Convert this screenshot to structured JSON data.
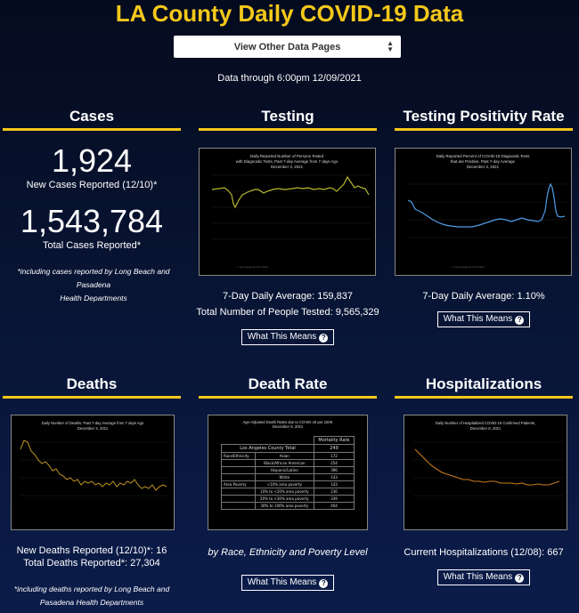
{
  "header": {
    "title": "LA County Daily COVID-19 Data",
    "select_label": "View Other Data Pages",
    "data_through": "Data through 6:00pm 12/09/2021"
  },
  "cases": {
    "title": "Cases",
    "new_value": "1,924",
    "new_label": "New Cases Reported (12/10)*",
    "total_value": "1,543,784",
    "total_label": "Total Cases Reported*",
    "footnote_line1": "*including cases reported by Long Beach and Pasadena",
    "footnote_line2": "Health Departments"
  },
  "testing": {
    "title": "Testing",
    "chart_title1": "Daily Reported Number of Persons Tested",
    "chart_title2": "with Diagnostic Tests, Past 7-day Average from 7 days Ago",
    "chart_title3": "December 3, 2021",
    "avg": "7-Day Daily Average: 159,837",
    "total": "Total Number of People Tested: 9,565,329",
    "button": "What This Means"
  },
  "positivity": {
    "title": "Testing Positivity Rate",
    "chart_title1": "Daily Reported Percent of COVID-19 Diagnostic Tests",
    "chart_title2": "that are Positive, Past 7-day Average",
    "chart_title3": "December 3, 2021",
    "avg": "7-Day Daily Average: 1.10%",
    "button": "What This Means"
  },
  "deaths": {
    "title": "Deaths",
    "chart_title1": "Daily Number of Deaths, Past 7-day Average from 7 days Ago",
    "chart_title2": "December 3, 2021",
    "new": "New Deaths Reported (12/10)*: 16",
    "total": "Total Deaths Reported*: 27,304",
    "footnote_line1": "*including deaths reported by Long Beach and",
    "footnote_line2": "Pasadena Health Departments"
  },
  "death_rate": {
    "title": "Death Rate",
    "chart_title1": "Age-Adjusted Death Rates due to COVID-19 per 100K",
    "chart_title2": "December 9, 2021",
    "col_header": "Mortality Rate",
    "total_label": "Los Angeles County Total",
    "total_value": "249",
    "group1": "Race/Ethnicity",
    "group2": "Area Poverty",
    "rows": [
      {
        "label": "Asian",
        "value": "172"
      },
      {
        "label": "Black/African American",
        "value": "254"
      },
      {
        "label": "Hispanic/Latino",
        "value": "396"
      },
      {
        "label": "White",
        "value": "143"
      },
      {
        "label": "<10% area poverty",
        "value": "143"
      },
      {
        "label": "10% to <20% area poverty",
        "value": "236"
      },
      {
        "label": "20% to <30% area poverty",
        "value": "339"
      },
      {
        "label": "30% to 100% area poverty",
        "value": "404"
      }
    ],
    "subtitle": "by Race, Ethnicity and Poverty Level",
    "button": "What This Means"
  },
  "hospitalizations": {
    "title": "Hospitalizations",
    "chart_title1": "Daily Number of Hospitalized COVID-19 Confirmed Patients,",
    "chart_title2": "December 8, 2021",
    "current": "Current Hospitalizations (12/08): 667",
    "button": "What This Means"
  },
  "colors": {
    "accent": "#f4c81a",
    "testing_line": "#b5b82a",
    "positivity_line": "#4f9be8",
    "deaths_line": "#b38a1f",
    "hosp_line": "#c77a1c"
  }
}
